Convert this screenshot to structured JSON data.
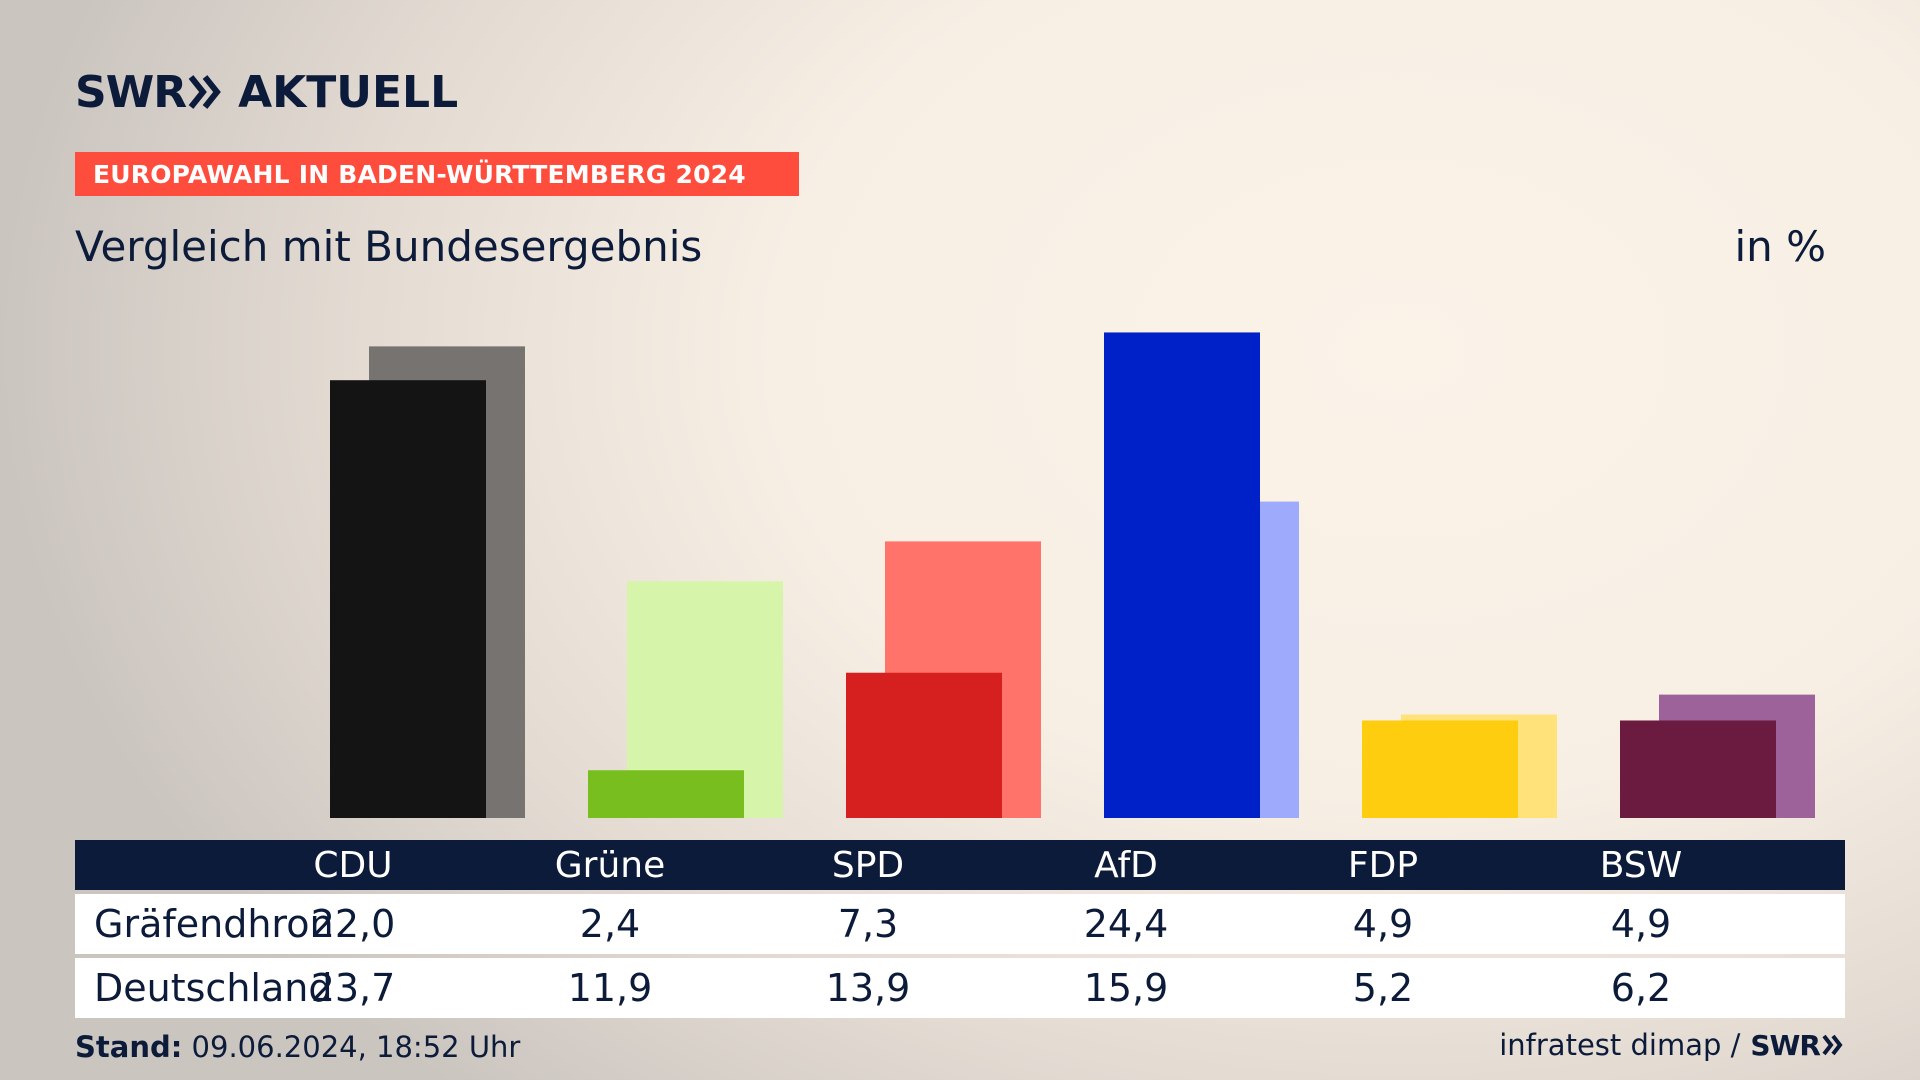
{
  "header": {
    "logo_swr": "SWR",
    "logo_aktuell": "AKTUELL",
    "banner": "EUROPAWAHL IN BADEN-WÜRTTEMBERG 2024",
    "subtitle": "Vergleich mit Bundesergebnis",
    "unit": "in %"
  },
  "chart_data": {
    "type": "bar",
    "categories": [
      "CDU",
      "Grüne",
      "SPD",
      "AfD",
      "FDP",
      "BSW"
    ],
    "series": [
      {
        "name": "Gräfendhron",
        "values": [
          22.0,
          2.4,
          7.3,
          24.4,
          4.9,
          4.9
        ]
      },
      {
        "name": "Deutschland",
        "values": [
          23.7,
          11.9,
          13.9,
          15.9,
          5.2,
          6.2
        ]
      }
    ],
    "ylim": [
      0,
      25
    ],
    "grid": false,
    "colors": {
      "local": [
        "#141414",
        "#78be1e",
        "#d61f1f",
        "#0020c8",
        "#ffcd0f",
        "#6b1a40"
      ],
      "national": [
        "#767371",
        "#d7f5aa",
        "#ff736b",
        "#9eaafc",
        "#ffe27a",
        "#9c6299"
      ]
    }
  },
  "table": {
    "headers": [
      "CDU",
      "Grüne",
      "SPD",
      "AfD",
      "FDP",
      "BSW"
    ],
    "rows": [
      {
        "label": "Gräfendhron",
        "values": [
          "22,0",
          "2,4",
          "7,3",
          "24,4",
          "4,9",
          "4,9"
        ]
      },
      {
        "label": "Deutschland",
        "values": [
          "23,7",
          "11,9",
          "13,9",
          "15,9",
          "5,2",
          "6,2"
        ]
      }
    ]
  },
  "footer": {
    "stand_label": "Stand:",
    "stand_value": "09.06.2024, 18:52 Uhr",
    "source": "infratest dimap /",
    "source_logo": "SWR"
  }
}
